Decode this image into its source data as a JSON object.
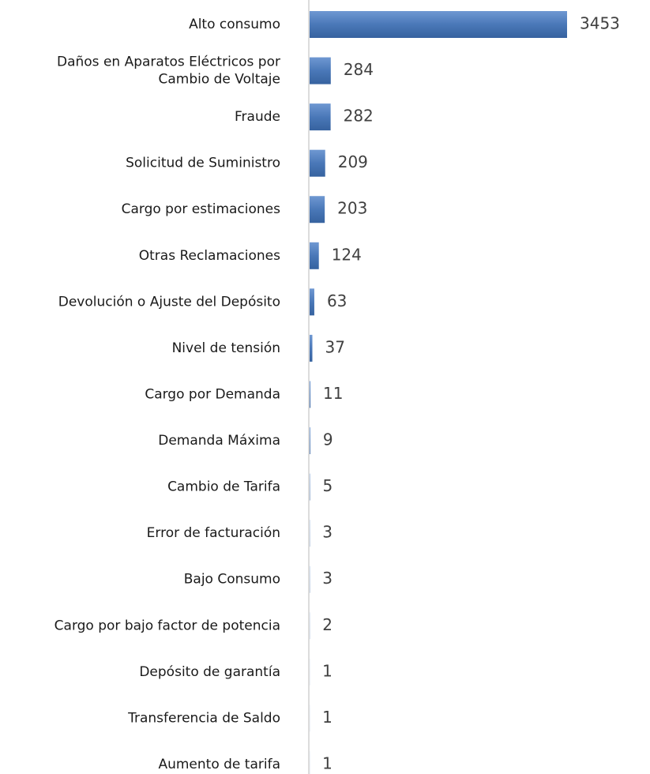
{
  "chart_data": {
    "type": "bar",
    "orientation": "horizontal",
    "color": "#4a78b8",
    "categories": [
      "Alto consumo",
      "Daños en Aparatos Eléctricos por\nCambio de Voltaje",
      "Fraude",
      "Solicitud de Suministro",
      "Cargo por estimaciones",
      "Otras Reclamaciones",
      "Devolución o Ajuste del Depósito",
      "Nivel de tensión",
      "Cargo por Demanda",
      "Demanda Máxima",
      "Cambio de Tarifa",
      "Error de facturación",
      "Bajo Consumo",
      "Cargo por bajo factor de potencia",
      "Depósito de garantía",
      "Transferencia de Saldo",
      "Aumento de tarifa"
    ],
    "values": [
      3453,
      284,
      282,
      209,
      203,
      124,
      63,
      37,
      11,
      9,
      5,
      3,
      3,
      2,
      1,
      1,
      1
    ]
  }
}
